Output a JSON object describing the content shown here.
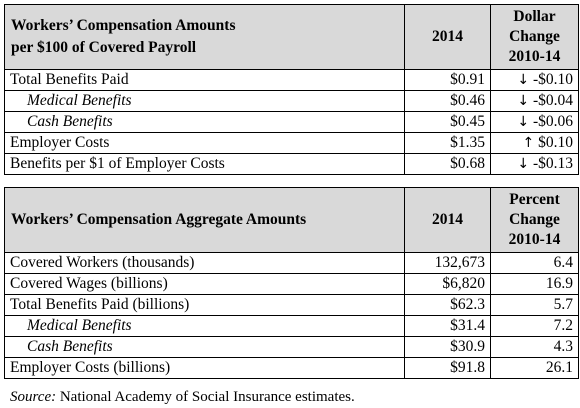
{
  "table1": {
    "header": {
      "title_line1": "Workers’ Compensation Amounts",
      "title_line2": "per $100 of Covered Payroll",
      "year": "2014",
      "change_line1": "Dollar",
      "change_line2": "Change",
      "change_line3": "2010-14"
    },
    "rows": [
      {
        "label": "Total Benefits Paid",
        "value": "$0.91",
        "arrow": "↓",
        "change": "-$0.10"
      },
      {
        "label": "Medical Benefits",
        "value": "$0.46",
        "arrow": "↓",
        "change": "-$0.04"
      },
      {
        "label": "Cash Benefits",
        "value": "$0.45",
        "arrow": "↓",
        "change": "-$0.06"
      },
      {
        "label": "Employer Costs",
        "value": "$1.35",
        "arrow": "↑",
        "change": "$0.10"
      },
      {
        "label": "Benefits per $1 of Employer Costs",
        "value": "$0.68",
        "arrow": "↓",
        "change": "-$0.13"
      }
    ]
  },
  "table2": {
    "header": {
      "title": "Workers’ Compensation Aggregate Amounts",
      "year": "2014",
      "change_line1": "Percent",
      "change_line2": "Change",
      "change_line3": "2010-14"
    },
    "rows": [
      {
        "label": "Covered Workers (thousands)",
        "value": "132,673",
        "change": "6.4"
      },
      {
        "label": "Covered Wages (billions)",
        "value": "$6,820",
        "change": "16.9"
      },
      {
        "label": "Total Benefits Paid (billions)",
        "value": "$62.3",
        "change": "5.7"
      },
      {
        "label": "Medical Benefits",
        "value": "$31.4",
        "change": "7.2"
      },
      {
        "label": "Cash Benefits",
        "value": "$30.9",
        "change": "4.3"
      },
      {
        "label": "Employer Costs (billions)",
        "value": "$91.8",
        "change": "26.1"
      }
    ]
  },
  "source": {
    "label": "Source:",
    "text": " National Academy of Social Insurance estimates."
  }
}
